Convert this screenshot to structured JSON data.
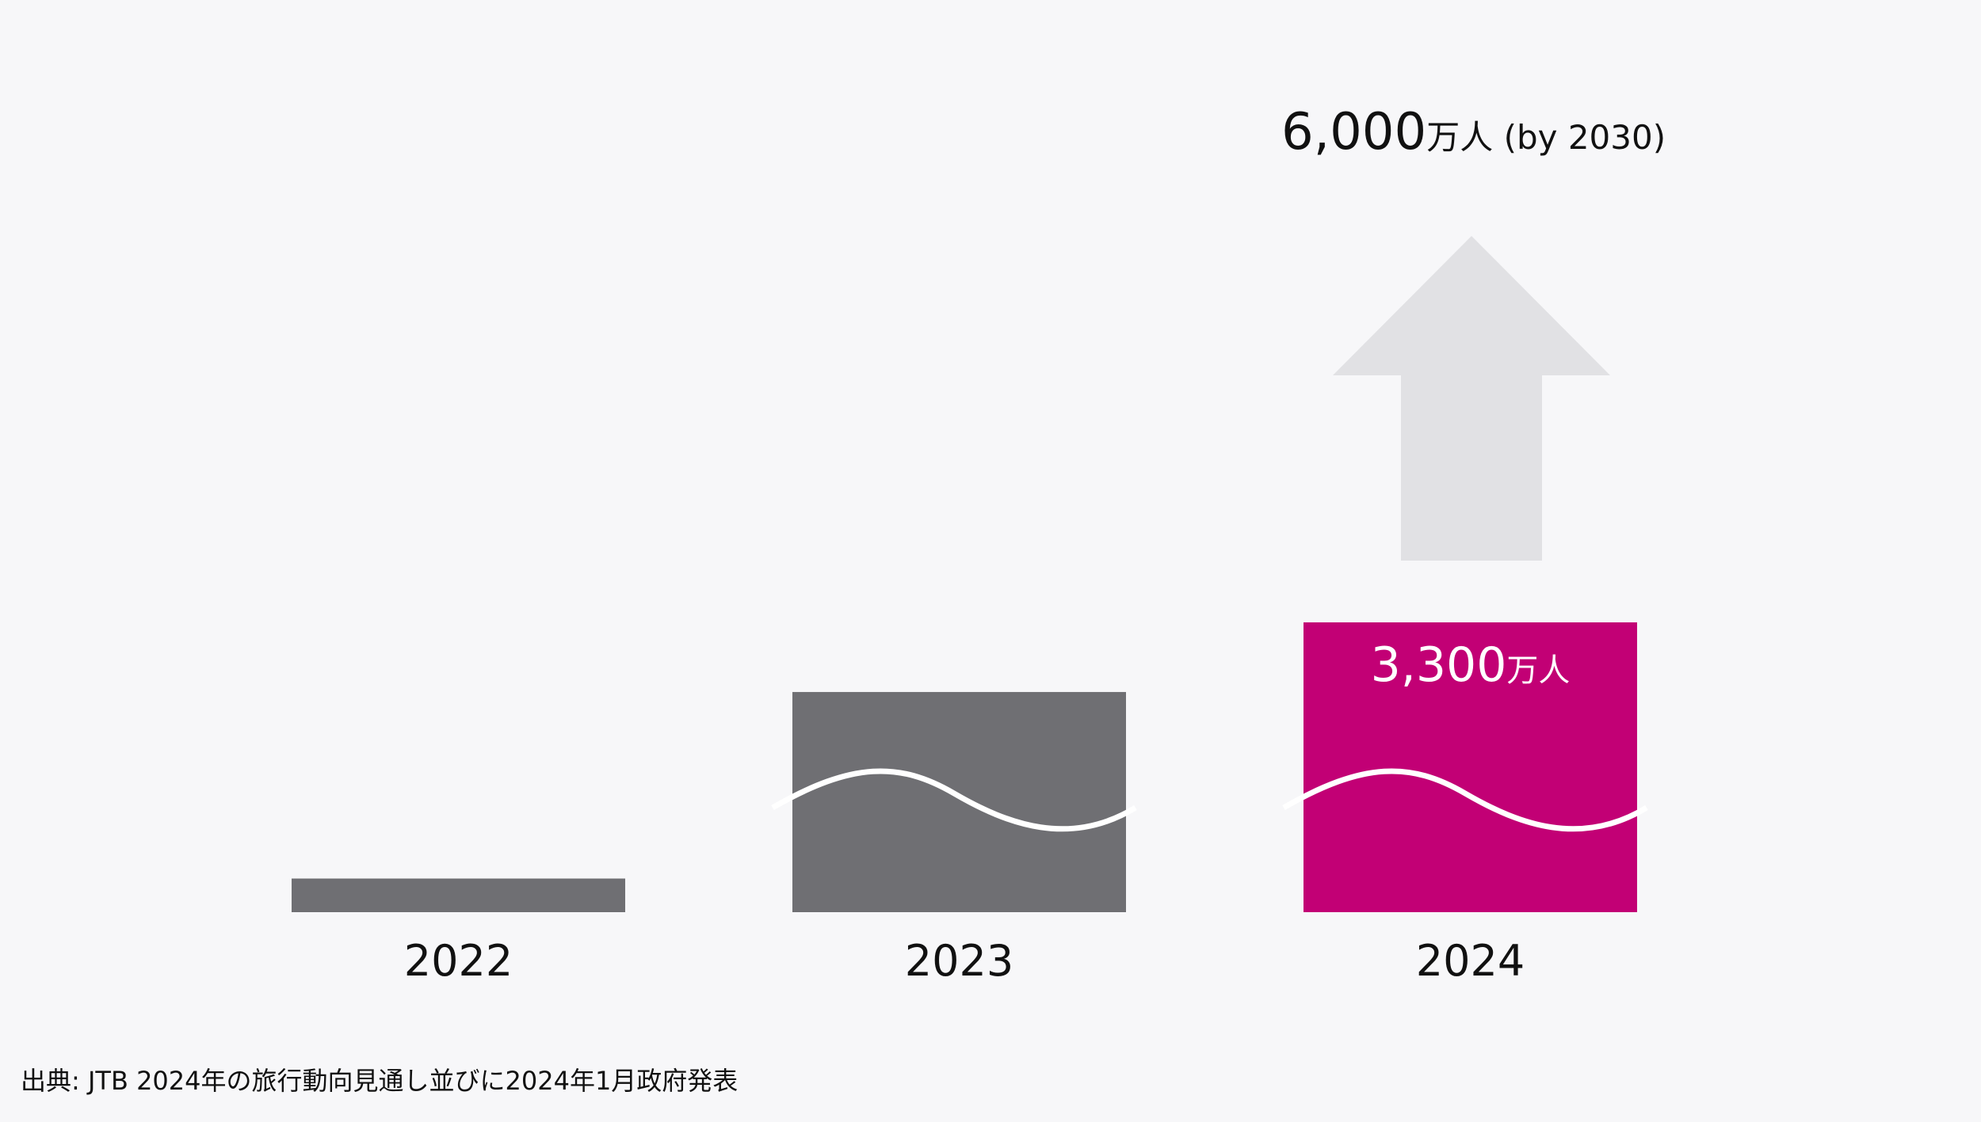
{
  "chart_data": {
    "type": "bar",
    "categories": [
      "2022",
      "2023",
      "2024"
    ],
    "values": [
      383,
      2507,
      3300
    ],
    "unit": "万人",
    "highlight_label": {
      "number": "3,300",
      "unit": "万人"
    },
    "target": {
      "number": "6,000",
      "unit": "万人 (by 2030)",
      "value": 6000
    },
    "colors": {
      "bar": "#6f6f73",
      "highlight": "#c20075",
      "arrow": "#e1e1e4",
      "wave": "#ffffff"
    }
  },
  "source": "出典: JTB 2024年の旅行動向見通し並びに2024年1月政府発表"
}
